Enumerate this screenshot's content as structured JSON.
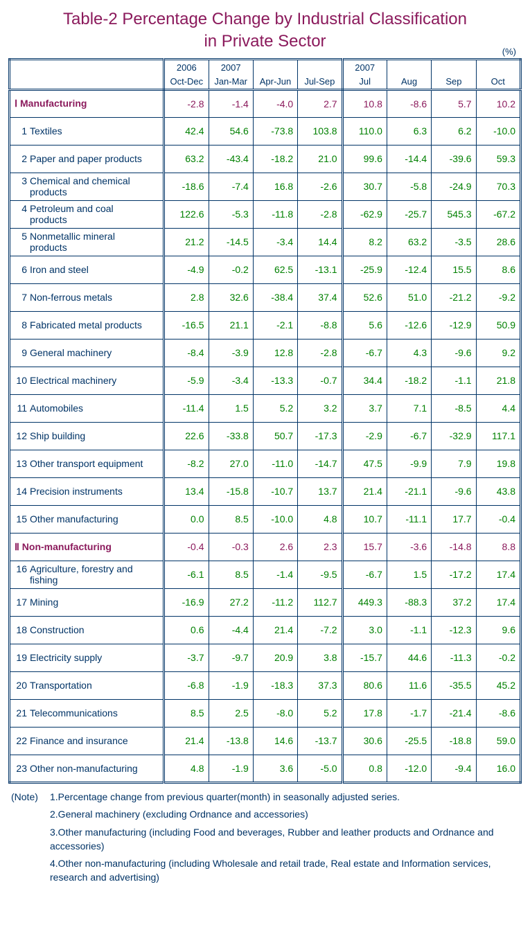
{
  "title_line1": "Table-2  Percentage Change by Industrial Classification",
  "title_line2": "in Private Sector",
  "unit_label": "(%)",
  "colors": {
    "title": "#8b1a5c",
    "header_text": "#003366",
    "value_green": "#008000",
    "value_maroon": "#8b1a5c",
    "border": "#003366",
    "background": "#ffffff"
  },
  "typography": {
    "title_fontsize": 24,
    "cell_fontsize": 14,
    "header_fontsize": 13,
    "notes_fontsize": 14
  },
  "header": {
    "top": [
      "2006",
      "2007",
      "",
      "",
      "2007",
      "",
      "",
      ""
    ],
    "bot": [
      "Oct-Dec",
      "Jan-Mar",
      "Apr-Jun",
      "Jul-Sep",
      "Jul",
      "Aug",
      "Sep",
      "Oct"
    ]
  },
  "sections": [
    {
      "roman": "Ⅰ",
      "label": "Manufacturing",
      "values": [
        "-2.8",
        "-1.4",
        "-4.0",
        "2.7",
        "10.8",
        "-8.6",
        "5.7",
        "10.2"
      ],
      "rows": [
        {
          "num": "1",
          "label": "Textiles",
          "values": [
            "42.4",
            "54.6",
            "-73.8",
            "103.8",
            "110.0",
            "6.3",
            "6.2",
            "-10.0"
          ]
        },
        {
          "num": "2",
          "label": "Paper and paper products",
          "values": [
            "63.2",
            "-43.4",
            "-18.2",
            "21.0",
            "99.6",
            "-14.4",
            "-39.6",
            "59.3"
          ]
        },
        {
          "num": "3",
          "label": "Chemical and chemical products",
          "values": [
            "-18.6",
            "-7.4",
            "16.8",
            "-2.6",
            "30.7",
            "-5.8",
            "-24.9",
            "70.3"
          ]
        },
        {
          "num": "4",
          "label": "Petroleum and coal products",
          "values": [
            "122.6",
            "-5.3",
            "-11.8",
            "-2.8",
            "-62.9",
            "-25.7",
            "545.3",
            "-67.2"
          ]
        },
        {
          "num": "5",
          "label": "Nonmetallic mineral products",
          "values": [
            "21.2",
            "-14.5",
            "-3.4",
            "14.4",
            "8.2",
            "63.2",
            "-3.5",
            "28.6"
          ]
        },
        {
          "num": "6",
          "label": "Iron and steel",
          "values": [
            "-4.9",
            "-0.2",
            "62.5",
            "-13.1",
            "-25.9",
            "-12.4",
            "15.5",
            "8.6"
          ]
        },
        {
          "num": "7",
          "label": "Non-ferrous metals",
          "values": [
            "2.8",
            "32.6",
            "-38.4",
            "37.4",
            "52.6",
            "51.0",
            "-21.2",
            "-9.2"
          ]
        },
        {
          "num": "8",
          "label": "Fabricated metal products",
          "values": [
            "-16.5",
            "21.1",
            "-2.1",
            "-8.8",
            "5.6",
            "-12.6",
            "-12.9",
            "50.9"
          ]
        },
        {
          "num": "9",
          "label": "General machinery",
          "values": [
            "-8.4",
            "-3.9",
            "12.8",
            "-2.8",
            "-6.7",
            "4.3",
            "-9.6",
            "9.2"
          ]
        },
        {
          "num": "10",
          "label": "Electrical machinery",
          "values": [
            "-5.9",
            "-3.4",
            "-13.3",
            "-0.7",
            "34.4",
            "-18.2",
            "-1.1",
            "21.8"
          ]
        },
        {
          "num": "11",
          "label": "Automobiles",
          "values": [
            "-11.4",
            "1.5",
            "5.2",
            "3.2",
            "3.7",
            "7.1",
            "-8.5",
            "4.4"
          ]
        },
        {
          "num": "12",
          "label": "Ship building",
          "values": [
            "22.6",
            "-33.8",
            "50.7",
            "-17.3",
            "-2.9",
            "-6.7",
            "-32.9",
            "117.1"
          ]
        },
        {
          "num": "13",
          "label": "Other transport equipment",
          "values": [
            "-8.2",
            "27.0",
            "-11.0",
            "-14.7",
            "47.5",
            "-9.9",
            "7.9",
            "19.8"
          ]
        },
        {
          "num": "14",
          "label": "Precision instruments",
          "values": [
            "13.4",
            "-15.8",
            "-10.7",
            "13.7",
            "21.4",
            "-21.1",
            "-9.6",
            "43.8"
          ]
        },
        {
          "num": "15",
          "label": "Other manufacturing",
          "values": [
            "0.0",
            "8.5",
            "-10.0",
            "4.8",
            "10.7",
            "-11.1",
            "17.7",
            "-0.4"
          ]
        }
      ]
    },
    {
      "roman": "Ⅱ",
      "label": "Non-manufacturing",
      "values": [
        "-0.4",
        "-0.3",
        "2.6",
        "2.3",
        "15.7",
        "-3.6",
        "-14.8",
        "8.8"
      ],
      "rows": [
        {
          "num": "16",
          "label": "Agriculture, forestry and fishing",
          "values": [
            "-6.1",
            "8.5",
            "-1.4",
            "-9.5",
            "-6.7",
            "1.5",
            "-17.2",
            "17.4"
          ]
        },
        {
          "num": "17",
          "label": "Mining",
          "values": [
            "-16.9",
            "27.2",
            "-11.2",
            "112.7",
            "449.3",
            "-88.3",
            "37.2",
            "17.4"
          ]
        },
        {
          "num": "18",
          "label": "Construction",
          "values": [
            "0.6",
            "-4.4",
            "21.4",
            "-7.2",
            "3.0",
            "-1.1",
            "-12.3",
            "9.6"
          ]
        },
        {
          "num": "19",
          "label": "Electricity supply",
          "values": [
            "-3.7",
            "-9.7",
            "20.9",
            "3.8",
            "-15.7",
            "44.6",
            "-11.3",
            "-0.2"
          ]
        },
        {
          "num": "20",
          "label": "Transportation",
          "values": [
            "-6.8",
            "-1.9",
            "-18.3",
            "37.3",
            "80.6",
            "11.6",
            "-35.5",
            "45.2"
          ]
        },
        {
          "num": "21",
          "label": "Telecommunications",
          "values": [
            "8.5",
            "2.5",
            "-8.0",
            "5.2",
            "17.8",
            "-1.7",
            "-21.4",
            "-8.6"
          ]
        },
        {
          "num": "22",
          "label": "Finance and insurance",
          "values": [
            "21.4",
            "-13.8",
            "14.6",
            "-13.7",
            "30.6",
            "-25.5",
            "-18.8",
            "59.0"
          ]
        },
        {
          "num": "23",
          "label": "Other non-manufacturing",
          "values": [
            "4.8",
            "-1.9",
            "3.6",
            "-5.0",
            "0.8",
            "-12.0",
            "-9.4",
            "16.0"
          ]
        }
      ]
    }
  ],
  "notes_label": "(Note)",
  "notes": [
    "1.Percentage change from previous quarter(month) in seasonally adjusted series.",
    "2.General machinery (excluding Ordnance and accessories)",
    "3.Other manufacturing (including Food and beverages, Rubber and leather products and Ordnance and accessories)",
    "4.Other non-manufacturing (including Wholesale and retail trade, Real estate and Information services, research and advertising)"
  ]
}
